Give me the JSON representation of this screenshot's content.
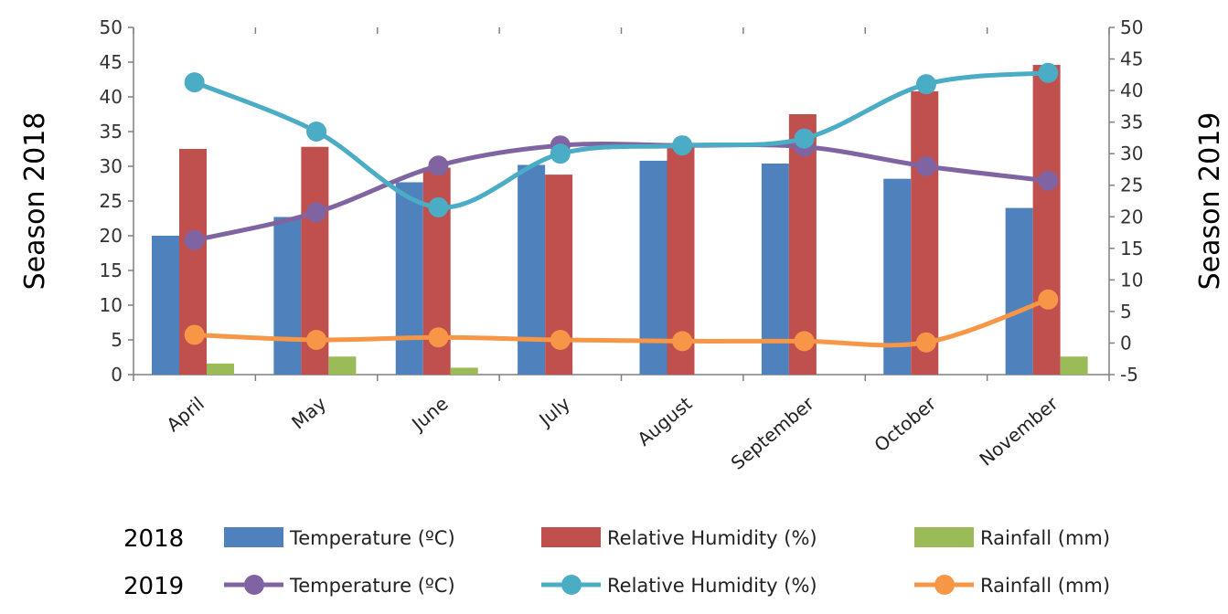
{
  "chart_data": {
    "type": "bar+line",
    "categories": [
      "April",
      "May",
      "June",
      "July",
      "August",
      "September",
      "October",
      "November"
    ],
    "left_axis": {
      "label": "Season 2018",
      "ylim": [
        0,
        50
      ],
      "ticks": [
        0,
        5,
        10,
        15,
        20,
        25,
        30,
        35,
        40,
        45,
        50
      ]
    },
    "right_axis": {
      "label": "Season 2019",
      "ylim": [
        -5,
        50
      ],
      "ticks": [
        -5,
        0,
        5,
        10,
        15,
        20,
        25,
        30,
        35,
        40,
        45,
        50
      ]
    },
    "bar_series": [
      {
        "name": "Temperature (ºC)",
        "color": "#4f81bd",
        "values": [
          20.0,
          22.7,
          27.7,
          30.2,
          30.8,
          30.4,
          28.2,
          24.0
        ]
      },
      {
        "name": "Relative Humidity (%)",
        "color": "#c0504d",
        "values": [
          32.5,
          32.8,
          29.8,
          28.8,
          32.8,
          37.5,
          40.8,
          44.6
        ]
      },
      {
        "name": "Rainfall (mm)",
        "color": "#9bbb59",
        "values": [
          1.6,
          2.6,
          1.0,
          0.0,
          0.0,
          0.0,
          0.0,
          2.6
        ]
      }
    ],
    "line_series": [
      {
        "name": "Temperature (ºC)",
        "color": "#8064a2",
        "axis": "right",
        "values": [
          16.3,
          20.7,
          28.1,
          31.3,
          31.3,
          31.1,
          28.0,
          25.7
        ]
      },
      {
        "name": "Relative Humidity (%)",
        "color": "#4bacc6",
        "axis": "right",
        "values": [
          41.3,
          33.5,
          21.5,
          30.0,
          31.3,
          32.4,
          41.0,
          42.8
        ]
      },
      {
        "name": "Rainfall (mm)",
        "color": "#f79646",
        "axis": "right",
        "values": [
          1.3,
          0.5,
          0.9,
          0.5,
          0.3,
          0.3,
          0.1,
          6.9
        ]
      }
    ],
    "legend": {
      "placement": "bottom",
      "rows": [
        {
          "label": "2018",
          "kind": "bar",
          "entries": [
            "Temperature (ºC)",
            "Relative Humidity (%)",
            "Rainfall (mm)"
          ]
        },
        {
          "label": "2019",
          "kind": "line",
          "entries": [
            "Temperature (ºC)",
            "Relative Humidity (%)",
            "Rainfall (mm)"
          ]
        }
      ]
    },
    "grid": false
  }
}
